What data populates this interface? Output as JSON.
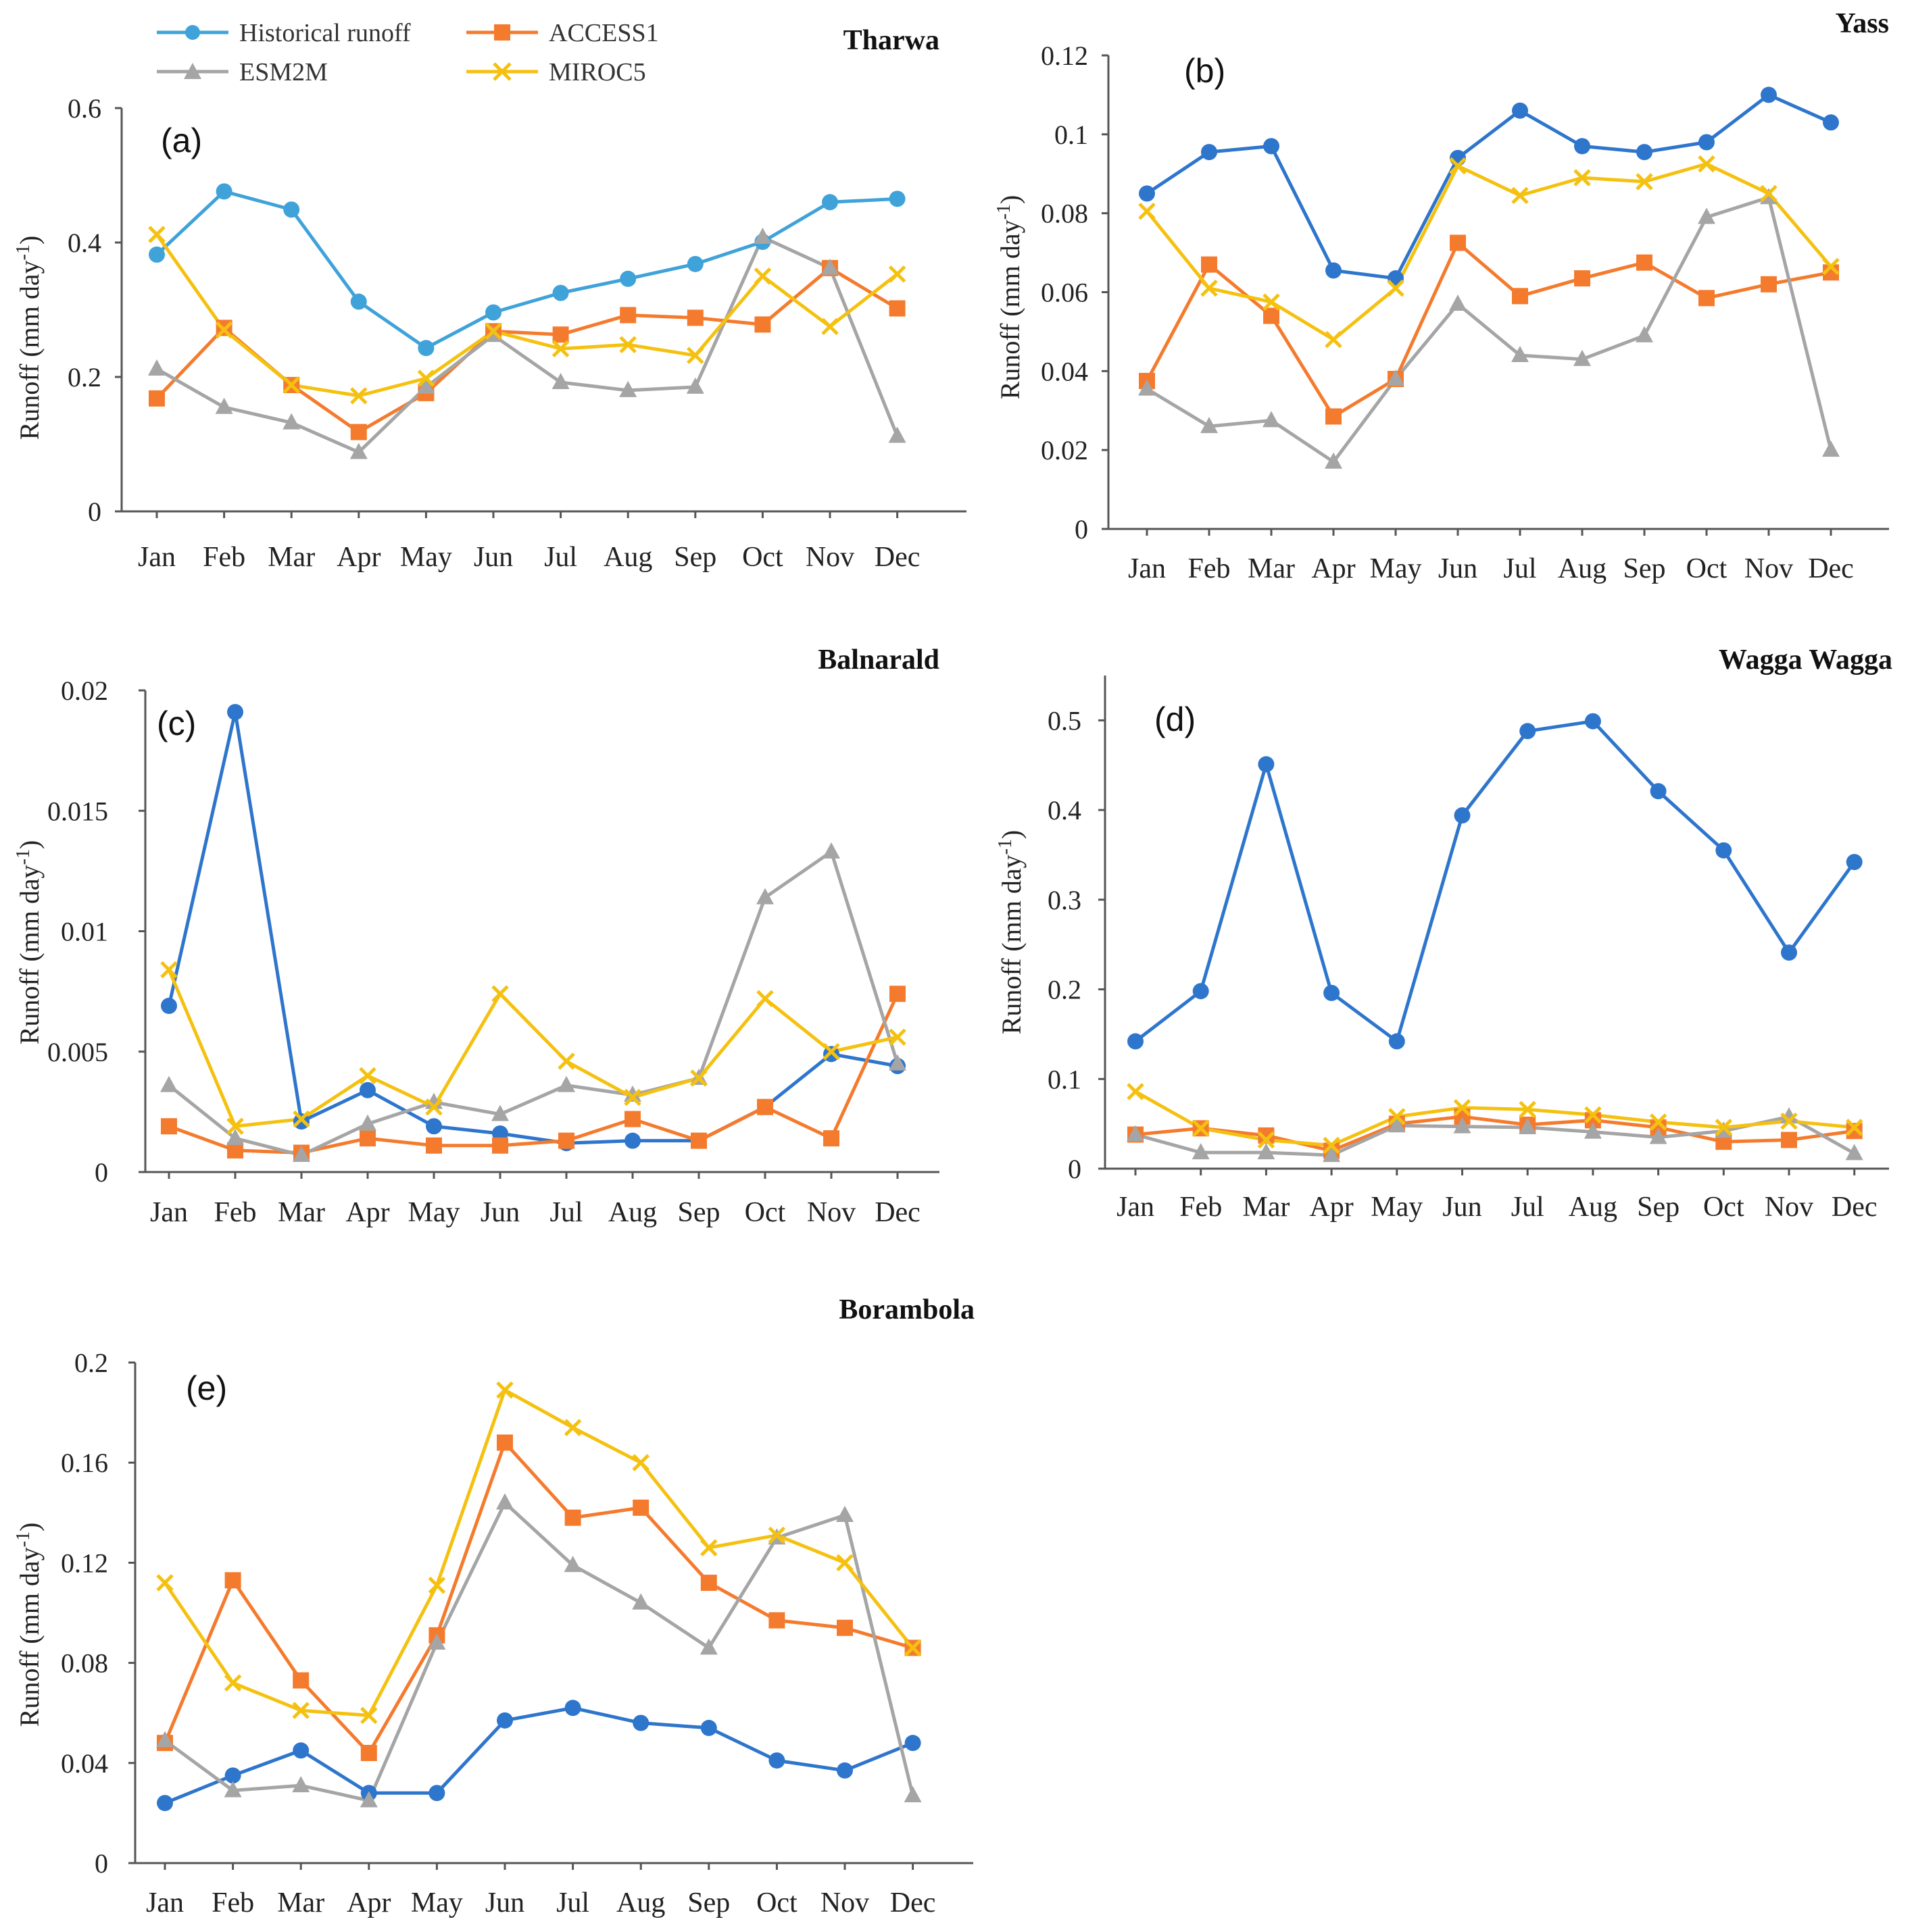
{
  "legend": {
    "items": [
      {
        "name": "Historical runoff",
        "color": "#3FA2D9",
        "marker": "circle"
      },
      {
        "name": "ACCESS1",
        "color": "#F47B2E",
        "marker": "square"
      },
      {
        "name": "ESM2M",
        "color": "#A5A5A5",
        "marker": "triangle"
      },
      {
        "name": "MIROC5",
        "color": "#F5C111",
        "marker": "x"
      }
    ]
  },
  "chart_data": [
    {
      "type": "line",
      "panel": "(a)",
      "title": "Tharwa",
      "ylabel": "Runoff (mm day",
      "ylabel_sup": "-1",
      "ylabel_close": ")",
      "categories": [
        "Jan",
        "Feb",
        "Mar",
        "Apr",
        "May",
        "Jun",
        "Jul",
        "Aug",
        "Sep",
        "Oct",
        "Nov",
        "Dec"
      ],
      "ylim": [
        0,
        0.6
      ],
      "yticks": [
        0,
        0.2,
        0.4,
        0.6
      ],
      "ytick_labels": [
        "0",
        "0.2",
        "0.4",
        "0.6"
      ],
      "series": [
        {
          "name": "Historical runoff",
          "color": "#3FA2D9",
          "marker": "circle",
          "values": [
            0.382,
            0.476,
            0.449,
            0.312,
            0.243,
            0.296,
            0.325,
            0.346,
            0.368,
            0.401,
            0.46,
            0.465
          ]
        },
        {
          "name": "ACCESS1",
          "color": "#F47B2E",
          "marker": "square",
          "values": [
            0.168,
            0.273,
            0.188,
            0.118,
            0.176,
            0.268,
            0.263,
            0.292,
            0.288,
            0.278,
            0.362,
            0.302
          ]
        },
        {
          "name": "ESM2M",
          "color": "#A5A5A5",
          "marker": "triangle",
          "values": [
            0.212,
            0.155,
            0.132,
            0.088,
            0.185,
            0.262,
            0.192,
            0.18,
            0.185,
            0.408,
            0.362,
            0.112
          ]
        },
        {
          "name": "MIROC5",
          "color": "#F5C111",
          "marker": "x",
          "values": [
            0.412,
            0.27,
            0.188,
            0.172,
            0.198,
            0.268,
            0.242,
            0.248,
            0.232,
            0.35,
            0.275,
            0.353
          ]
        }
      ]
    },
    {
      "type": "line",
      "panel": "(b)",
      "title": "Yass",
      "ylabel": "Runoff (mm day",
      "ylabel_sup": "-1",
      "ylabel_close": ")",
      "categories": [
        "Jan",
        "Feb",
        "Mar",
        "Apr",
        "May",
        "Jun",
        "Jul",
        "Aug",
        "Sep",
        "Oct",
        "Nov",
        "Dec"
      ],
      "ylim": [
        0,
        0.12
      ],
      "yticks": [
        0,
        0.02,
        0.04,
        0.06,
        0.08,
        0.1,
        0.12
      ],
      "ytick_labels": [
        "0",
        "0.02",
        "0.04",
        "0.06",
        "0.08",
        "0.1",
        "0.12"
      ],
      "series": [
        {
          "name": "Historical runoff",
          "color": "#2E75CC",
          "marker": "circle",
          "values": [
            0.085,
            0.0955,
            0.097,
            0.0655,
            0.0635,
            0.094,
            0.106,
            0.097,
            0.0955,
            0.098,
            0.11,
            0.103
          ]
        },
        {
          "name": "ACCESS1",
          "color": "#F47B2E",
          "marker": "square",
          "values": [
            0.0375,
            0.067,
            0.054,
            0.0285,
            0.038,
            0.0725,
            0.059,
            0.0635,
            0.0675,
            0.0585,
            0.062,
            0.065
          ]
        },
        {
          "name": "ESM2M",
          "color": "#A5A5A5",
          "marker": "triangle",
          "values": [
            0.0355,
            0.026,
            0.0275,
            0.017,
            0.038,
            0.057,
            0.044,
            0.043,
            0.049,
            0.079,
            0.084,
            0.02
          ]
        },
        {
          "name": "MIROC5",
          "color": "#F5C111",
          "marker": "x",
          "values": [
            0.0805,
            0.061,
            0.0575,
            0.048,
            0.061,
            0.092,
            0.0845,
            0.089,
            0.088,
            0.0925,
            0.085,
            0.0665
          ]
        }
      ]
    },
    {
      "type": "line",
      "panel": "(c)",
      "title": "Balnarald",
      "ylabel": "Runoff (mm day",
      "ylabel_sup": "-1",
      "ylabel_close": ")",
      "categories": [
        "Jan",
        "Feb",
        "Mar",
        "Apr",
        "May",
        "Jun",
        "Jul",
        "Aug",
        "Sep",
        "Oct",
        "Nov",
        "Dec"
      ],
      "ylim": [
        0,
        0.02
      ],
      "yticks": [
        0,
        0.005,
        0.01,
        0.015,
        0.02
      ],
      "ytick_labels": [
        "0",
        "0.005",
        "0.01",
        "0.015",
        "0.02"
      ],
      "series": [
        {
          "name": "Historical runoff",
          "color": "#2E75CC",
          "marker": "circle",
          "values": [
            0.0069,
            0.0191,
            0.0021,
            0.0034,
            0.0019,
            0.0016,
            0.0012,
            0.0013,
            0.0013,
            0.0027,
            0.0049,
            0.0044
          ]
        },
        {
          "name": "ACCESS1",
          "color": "#F47B2E",
          "marker": "square",
          "values": [
            0.0019,
            0.0009,
            0.0008,
            0.0014,
            0.0011,
            0.0011,
            0.0013,
            0.0022,
            0.0013,
            0.0027,
            0.0014,
            0.0074
          ]
        },
        {
          "name": "ESM2M",
          "color": "#A5A5A5",
          "marker": "triangle",
          "values": [
            0.0036,
            0.0014,
            0.0007,
            0.002,
            0.0029,
            0.0024,
            0.0036,
            0.0032,
            0.0039,
            0.0114,
            0.0133,
            0.0045
          ]
        },
        {
          "name": "MIROC5",
          "color": "#F5C111",
          "marker": "x",
          "values": [
            0.0084,
            0.0019,
            0.0022,
            0.004,
            0.0027,
            0.0074,
            0.0046,
            0.0031,
            0.0039,
            0.0072,
            0.005,
            0.0056
          ]
        }
      ]
    },
    {
      "type": "line",
      "panel": "(d)",
      "title": "Wagga Wagga",
      "ylabel": "Runoff (mm day",
      "ylabel_sup": "-1",
      "ylabel_close": ")",
      "categories": [
        "Jan",
        "Feb",
        "Mar",
        "Apr",
        "May",
        "Jun",
        "Jul",
        "Aug",
        "Sep",
        "Oct",
        "Nov",
        "Dec"
      ],
      "ylim": [
        0,
        0.55
      ],
      "yticks": [
        0,
        0.1,
        0.2,
        0.3,
        0.4,
        0.5
      ],
      "ytick_labels": [
        "0",
        "0.1",
        "0.2",
        "0.3",
        "0.4",
        "0.5"
      ],
      "series": [
        {
          "name": "Historical runoff",
          "color": "#2E75CC",
          "marker": "circle",
          "values": [
            0.142,
            0.198,
            0.451,
            0.196,
            0.142,
            0.394,
            0.488,
            0.499,
            0.421,
            0.355,
            0.241,
            0.342
          ]
        },
        {
          "name": "ACCESS1",
          "color": "#F47B2E",
          "marker": "square",
          "values": [
            0.038,
            0.045,
            0.037,
            0.02,
            0.05,
            0.058,
            0.049,
            0.054,
            0.046,
            0.03,
            0.032,
            0.042
          ]
        },
        {
          "name": "ESM2M",
          "color": "#A5A5A5",
          "marker": "triangle",
          "values": [
            0.038,
            0.018,
            0.018,
            0.015,
            0.048,
            0.047,
            0.046,
            0.041,
            0.035,
            0.042,
            0.058,
            0.017
          ]
        },
        {
          "name": "MIROC5",
          "color": "#F5C111",
          "marker": "x",
          "values": [
            0.086,
            0.045,
            0.032,
            0.026,
            0.058,
            0.068,
            0.066,
            0.06,
            0.052,
            0.046,
            0.053,
            0.046
          ]
        }
      ]
    },
    {
      "type": "line",
      "panel": "(e)",
      "title": "Borambola",
      "ylabel": "Runoff (mm day",
      "ylabel_sup": "-1",
      "ylabel_close": ")",
      "categories": [
        "Jan",
        "Feb",
        "Mar",
        "Apr",
        "May",
        "Jun",
        "Jul",
        "Aug",
        "Sep",
        "Oct",
        "Nov",
        "Dec"
      ],
      "ylim": [
        0,
        0.2
      ],
      "yticks": [
        0,
        0.04,
        0.08,
        0.12,
        0.16,
        0.2
      ],
      "ytick_labels": [
        "0",
        "0.04",
        "0.08",
        "0.12",
        "0.16",
        "0.2"
      ],
      "series": [
        {
          "name": "Historical runoff",
          "color": "#2E75CC",
          "marker": "circle",
          "values": [
            0.024,
            0.035,
            0.045,
            0.028,
            0.028,
            0.057,
            0.062,
            0.056,
            0.054,
            0.041,
            0.037,
            0.048
          ]
        },
        {
          "name": "ACCESS1",
          "color": "#F47B2E",
          "marker": "square",
          "values": [
            0.048,
            0.113,
            0.073,
            0.044,
            0.091,
            0.168,
            0.138,
            0.142,
            0.112,
            0.097,
            0.094,
            0.086
          ]
        },
        {
          "name": "ESM2M",
          "color": "#A5A5A5",
          "marker": "triangle",
          "values": [
            0.049,
            0.029,
            0.031,
            0.025,
            0.088,
            0.144,
            0.119,
            0.104,
            0.086,
            0.13,
            0.139,
            0.027
          ]
        },
        {
          "name": "MIROC5",
          "color": "#F5C111",
          "marker": "x",
          "values": [
            0.112,
            0.072,
            0.061,
            0.059,
            0.111,
            0.189,
            0.174,
            0.16,
            0.126,
            0.131,
            0.12,
            0.086
          ]
        }
      ]
    }
  ]
}
